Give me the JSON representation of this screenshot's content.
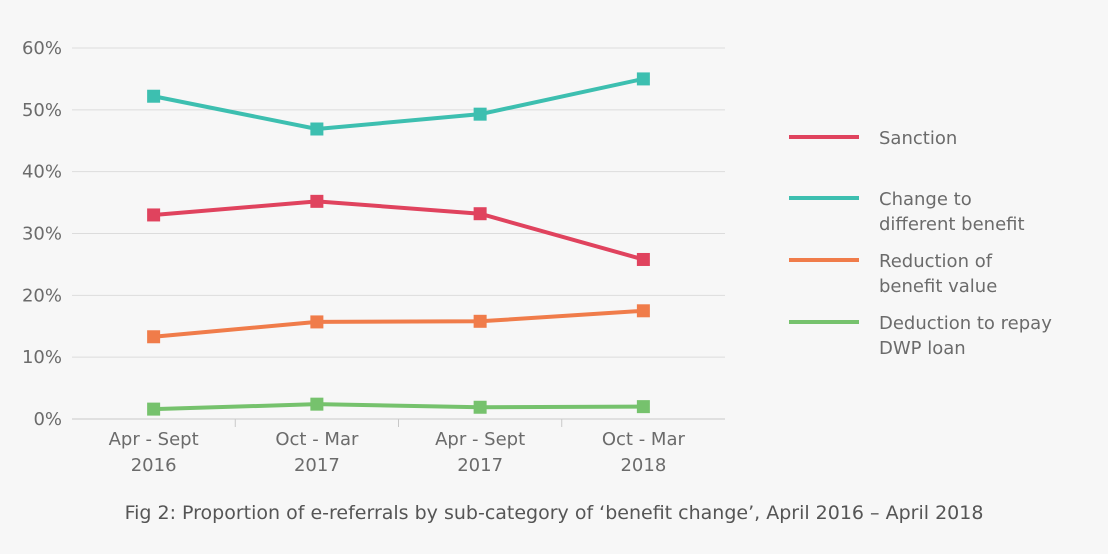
{
  "chart_data": {
    "type": "line",
    "title": "Fig 2: Proportion of e-referrals by sub-category of ‘benefit change’, April 2016 – April 2018",
    "xlabel": "",
    "ylabel": "",
    "categories": [
      [
        "Apr - Sept",
        "2016"
      ],
      [
        "Oct - Mar",
        "2017"
      ],
      [
        "Apr - Sept",
        "2017"
      ],
      [
        "Oct - Mar",
        "2018"
      ]
    ],
    "ylim": [
      0,
      60
    ],
    "y_ticks": [
      0,
      10,
      20,
      30,
      40,
      50,
      60
    ],
    "y_tick_labels": [
      "0%",
      "10%",
      "20%",
      "30%",
      "40%",
      "50%",
      "60%"
    ],
    "grid": true,
    "legend_position": "right",
    "series": [
      {
        "name": [
          "Sanction"
        ],
        "color": "#e0435e",
        "values": [
          33.0,
          35.2,
          33.2,
          25.8
        ]
      },
      {
        "name": [
          "Change to",
          "different benefit"
        ],
        "color": "#3dbfb0",
        "values": [
          52.2,
          46.9,
          49.3,
          55.0
        ]
      },
      {
        "name": [
          "Reduction of",
          "benefit value"
        ],
        "color": "#f07c4a",
        "values": [
          13.3,
          15.7,
          15.8,
          17.5
        ]
      },
      {
        "name": [
          "Deduction to repay",
          "DWP loan"
        ],
        "color": "#76c26d",
        "values": [
          1.6,
          2.4,
          1.9,
          2.0
        ]
      }
    ]
  }
}
